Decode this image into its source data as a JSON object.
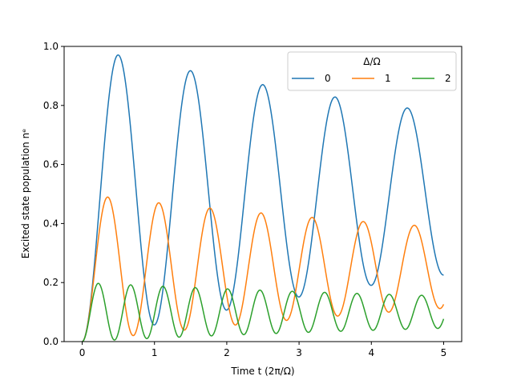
{
  "chart_data": {
    "type": "line",
    "title": "",
    "xlabel": "Time t (2π/Ω)",
    "ylabel": "Excited state population nᵉ",
    "xlim": [
      -0.25,
      5.25
    ],
    "ylim": [
      0,
      1
    ],
    "xticks": [
      "0",
      "1",
      "2",
      "3",
      "4",
      "5"
    ],
    "yticks": [
      "0.0",
      "0.2",
      "0.4",
      "0.6",
      "0.8",
      "1.0"
    ],
    "grid": false,
    "legend": {
      "title": "Δ/Ω",
      "placement": "top-right",
      "columns": 3
    },
    "model": "damped Rabi oscillation n_e(t) = Ω²/(Ω²+Δ²) · (1 − exp(−γt)·cos(2π·√(1+(Δ/Ω)²)·t)) / 2, with t in units of 2π/Ω",
    "damping_gamma": 0.12,
    "t_range": [
      0,
      5
    ],
    "series": [
      {
        "name": "0",
        "detuning": 0,
        "color": "#1f77b4"
      },
      {
        "name": "1",
        "detuning": 1,
        "color": "#ff7f0e"
      },
      {
        "name": "2",
        "detuning": 2,
        "color": "#2ca02c"
      }
    ]
  }
}
